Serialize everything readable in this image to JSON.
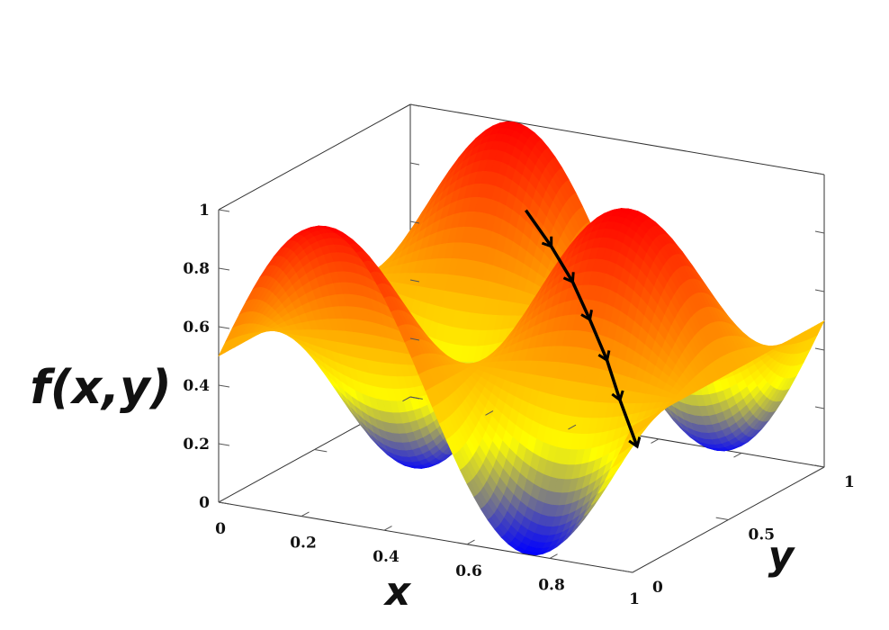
{
  "chart_data": {
    "type": "surface3d",
    "title": "",
    "xlabel": "x",
    "ylabel": "y",
    "zlabel": "f(x,y)",
    "xlim": [
      0,
      1
    ],
    "ylim": [
      0,
      1
    ],
    "zlim": [
      0,
      1
    ],
    "x_ticks": [
      0,
      0.2,
      0.4,
      0.6,
      0.8,
      1
    ],
    "x_tick_labels": [
      "0",
      "0.2",
      "0.4",
      "0.6",
      "0.8",
      "1"
    ],
    "y_ticks": [
      0,
      0.5,
      1
    ],
    "y_tick_labels": [
      "0",
      "0.5",
      "1"
    ],
    "z_ticks": [
      0,
      0.2,
      0.4,
      0.6,
      0.8,
      1
    ],
    "z_tick_labels": [
      "0",
      "0.2",
      "0.4",
      "0.6",
      "0.8",
      "1"
    ],
    "surface": {
      "function": "0.5 + 0.5 * sin(2*pi*x) * cos(2*pi*y)",
      "colormap": [
        "#0000ff",
        "#ffff00",
        "#ff8000",
        "#ff0000"
      ],
      "colormap_stops": [
        0,
        0.3,
        0.65,
        1
      ]
    },
    "path": {
      "description_points": [
        {
          "x": 0.52,
          "y": 0.48,
          "z": 0.95
        },
        {
          "x": 0.6,
          "y": 0.44,
          "z": 0.86
        },
        {
          "x": 0.67,
          "y": 0.4,
          "z": 0.77
        },
        {
          "x": 0.73,
          "y": 0.36,
          "z": 0.67
        },
        {
          "x": 0.79,
          "y": 0.32,
          "z": 0.56
        },
        {
          "x": 0.84,
          "y": 0.28,
          "z": 0.45
        },
        {
          "x": 0.9,
          "y": 0.24,
          "z": 0.32
        }
      ],
      "color": "#000000"
    },
    "grid": false
  }
}
